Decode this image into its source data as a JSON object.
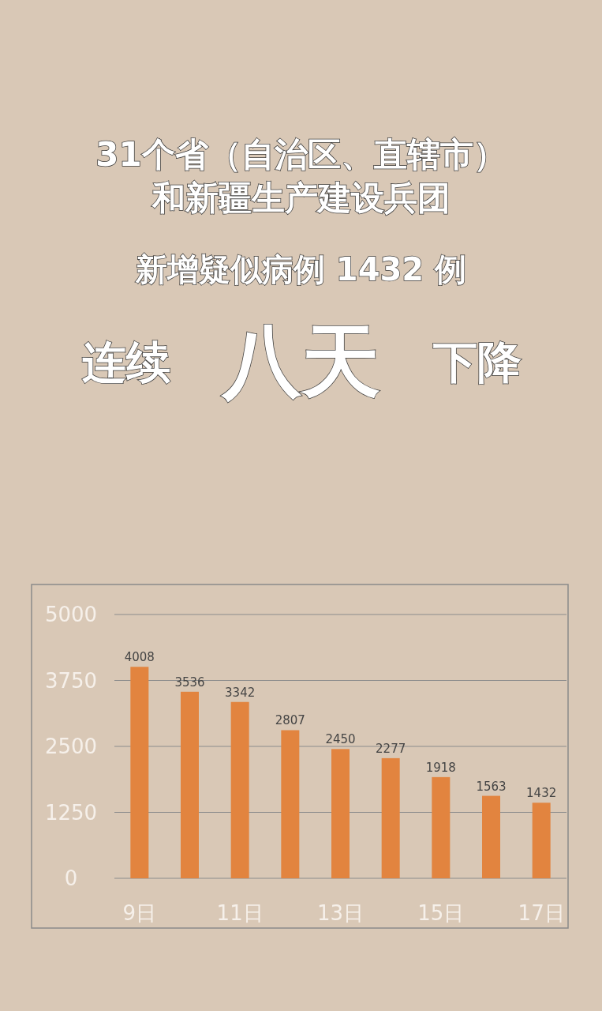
{
  "chart_data": {
    "type": "bar",
    "title": "31个省（自治区、直辖市）和新疆生产建设兵团",
    "subtitle": "新增疑似病例 1432 例",
    "annotations": [
      "连续",
      "八天",
      "下降"
    ],
    "categories": [
      "9日",
      null,
      "11日",
      null,
      "13日",
      null,
      "15日",
      null,
      "17日"
    ],
    "values": [
      4008,
      3536,
      3342,
      2807,
      2450,
      2277,
      1918,
      1563,
      1432
    ],
    "color": "#e2843f",
    "ylim": [
      0,
      5000
    ],
    "yticks": [
      0,
      1250,
      2500,
      3750,
      5000
    ],
    "grid": "y",
    "data_labels": true
  }
}
